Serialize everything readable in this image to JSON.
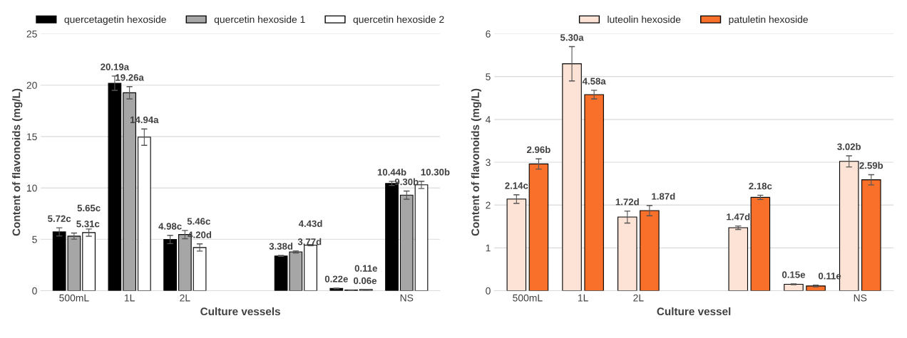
{
  "chart_data": [
    {
      "type": "bar",
      "xlabel": "Culture vessels",
      "ylabel": "Content of flavonoids (mg/L)",
      "categories": [
        "500mL",
        "1L",
        "2L",
        null,
        null,
        null,
        "NS"
      ],
      "ylim": [
        0,
        25
      ],
      "yticks": [
        0,
        5,
        10,
        15,
        20,
        25
      ],
      "grid": "y",
      "legend": "top",
      "series": [
        {
          "name": "quercetagetin hexoside",
          "color": "#000000",
          "values": [
            5.72,
            20.19,
            4.98,
            null,
            3.38,
            0.22,
            10.44
          ],
          "errors": [
            0.4,
            0.7,
            0.4,
            null,
            0.05,
            0.03,
            0.2
          ],
          "value_labels": [
            "5.72c",
            "20.19a",
            "4.98c",
            null,
            "3.38d",
            "0.22e",
            "10.44b"
          ]
        },
        {
          "name": "quercetin hexoside 1",
          "color": "#a6a6a6",
          "values": [
            5.31,
            19.26,
            5.46,
            null,
            3.77,
            0.06,
            9.3
          ],
          "errors": [
            0.3,
            0.6,
            0.4,
            null,
            0.1,
            0.02,
            0.4
          ],
          "value_labels": [
            "5.31c",
            "19.26a",
            "5.46c",
            null,
            "3.77d",
            "0.06e",
            "9.30b"
          ]
        },
        {
          "name": "quercetin hexoside 2",
          "color": "#ffffff",
          "values": [
            5.65,
            14.94,
            4.2,
            null,
            4.43,
            0.11,
            10.3
          ],
          "errors": [
            0.35,
            0.8,
            0.35,
            null,
            0.05,
            0.02,
            0.35
          ],
          "value_labels": [
            "5.65c",
            "14.94a",
            "4.20d",
            null,
            "4.43d",
            "0.11e",
            "10.30b"
          ]
        }
      ]
    },
    {
      "type": "bar",
      "xlabel": "Culture vessel",
      "ylabel": "Content of flavonoids (mg/L)",
      "categories": [
        "500mL",
        "1L",
        "2L",
        null,
        null,
        null,
        "NS"
      ],
      "ylim": [
        0,
        6
      ],
      "yticks": [
        0,
        1,
        2,
        3,
        4,
        5,
        6
      ],
      "grid": "y",
      "legend": "top",
      "series": [
        {
          "name": "luteolin hexoside",
          "color": "#fde3d5",
          "values": [
            2.14,
            5.3,
            1.72,
            null,
            1.47,
            0.15,
            3.02
          ],
          "errors": [
            0.1,
            0.4,
            0.14,
            null,
            0.04,
            0.01,
            0.13
          ],
          "value_labels": [
            "2.14c",
            "5.30a",
            "1.72d",
            null,
            "1.47d",
            "0.15e",
            "3.02b"
          ]
        },
        {
          "name": "patuletin hexoside",
          "color": "#f8702a",
          "values": [
            2.96,
            4.58,
            1.87,
            null,
            2.18,
            0.11,
            2.59
          ],
          "errors": [
            0.12,
            0.1,
            0.12,
            null,
            0.05,
            0.02,
            0.12
          ],
          "value_labels": [
            "2.96b",
            "4.58a",
            "1.87d",
            null,
            "2.18c",
            "0.11e",
            "2.59b"
          ]
        }
      ]
    }
  ]
}
